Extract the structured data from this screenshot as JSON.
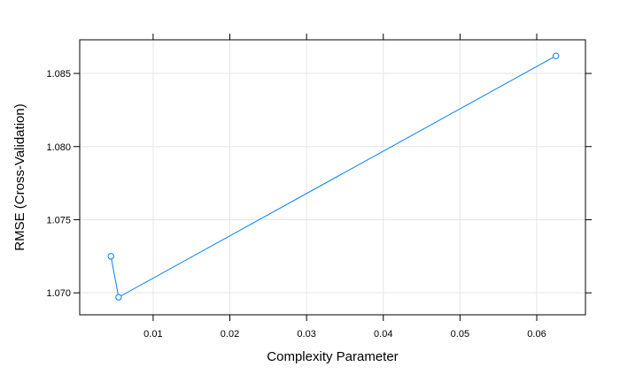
{
  "chart_data": {
    "type": "line",
    "title": "",
    "xlabel": "Complexity Parameter",
    "ylabel": "RMSE (Cross-Validation)",
    "x_ticks": [
      0.01,
      0.02,
      0.03,
      0.04,
      0.05,
      0.06
    ],
    "x_tick_labels": [
      "0.01",
      "0.02",
      "0.03",
      "0.04",
      "0.05",
      "0.06"
    ],
    "y_ticks": [
      1.07,
      1.075,
      1.08,
      1.085
    ],
    "y_tick_labels": [
      "1.070",
      "1.075",
      "1.080",
      "1.085"
    ],
    "xlim": [
      0.00043,
      0.06635
    ],
    "ylim": [
      1.0685,
      1.0873
    ],
    "grid": true,
    "series": [
      {
        "color": "#0080ff",
        "marker": "open-circle",
        "x": [
          0.0045,
          0.0055,
          0.0625
        ],
        "y": [
          1.0725,
          1.0697,
          1.0862
        ]
      }
    ]
  }
}
